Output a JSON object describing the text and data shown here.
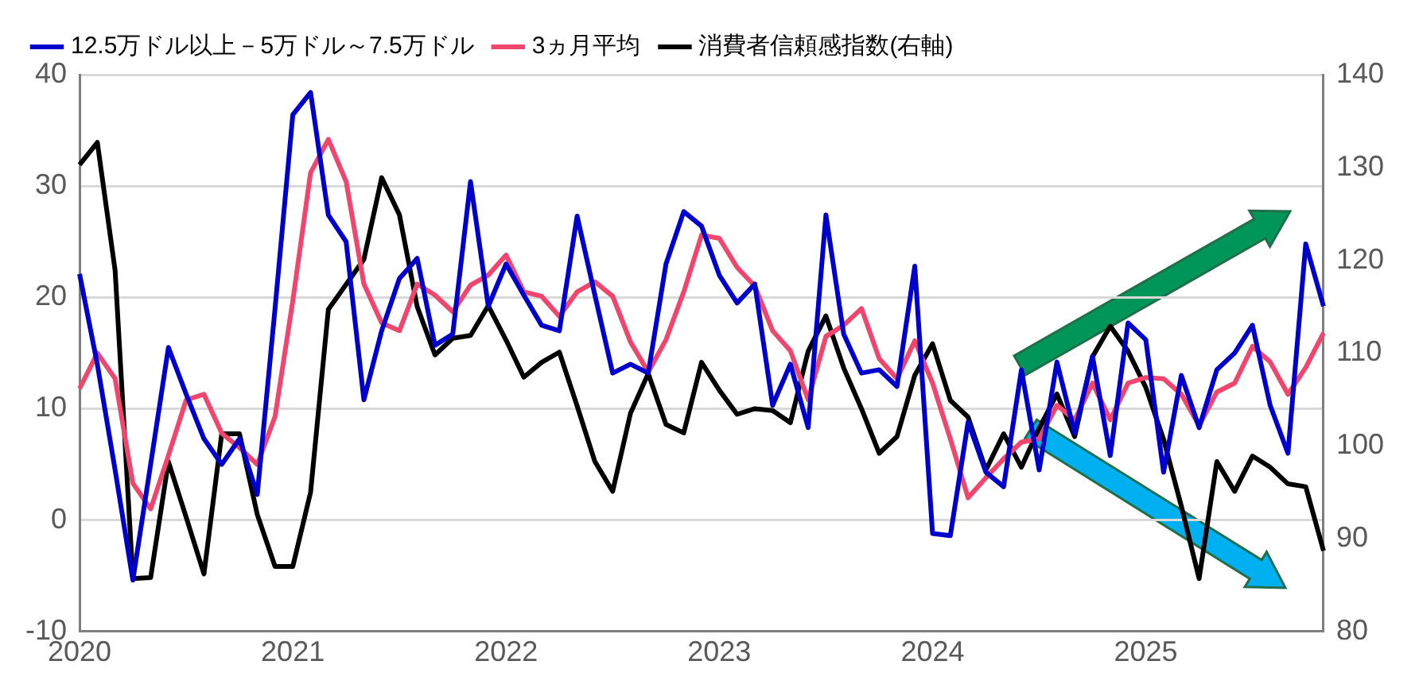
{
  "chart_data": {
    "type": "line",
    "categories": [
      "2020",
      null,
      null,
      null,
      null,
      null,
      null,
      null,
      null,
      null,
      null,
      null,
      "2021",
      null,
      null,
      null,
      null,
      null,
      null,
      null,
      null,
      null,
      null,
      null,
      "2022",
      null,
      null,
      null,
      null,
      null,
      null,
      null,
      null,
      null,
      null,
      null,
      "2023",
      null,
      null,
      null,
      null,
      null,
      null,
      null,
      null,
      null,
      null,
      null,
      "2024",
      null,
      null,
      null,
      null,
      null,
      null,
      null,
      null,
      null,
      null,
      null,
      "2025",
      null,
      null,
      null,
      null,
      null,
      null,
      null,
      null,
      null,
      null
    ],
    "series": [
      {
        "name": "12.5万ドル以上－5万ドル～7.5万ドル",
        "color": "#0000cc",
        "values": [
          22.1,
          14,
          4.5,
          -5.4,
          5,
          15.5,
          11.3,
          7.3,
          5.0,
          7.3,
          2.3,
          19,
          36.4,
          38.4,
          27.4,
          25,
          10.8,
          17,
          21.7,
          23.5,
          15.7,
          16.7,
          30.4,
          19.2,
          23,
          20.2,
          17.5,
          17,
          27.3,
          20.2,
          13.2,
          14,
          13.2,
          23,
          27.7,
          26.4,
          22,
          19.5,
          21.2,
          10.3,
          14,
          8.3,
          27.4,
          16.7,
          13.2,
          13.5,
          12,
          22.8,
          -1.2,
          -1.4,
          8.8,
          4.3,
          3.0,
          13.5,
          4.5,
          14.2,
          7.8,
          14.7,
          5.8,
          17.7,
          16.2,
          4.3,
          13,
          8.3,
          13.5,
          15,
          17.5,
          10.3,
          6,
          24.8,
          19.2
        ]
      },
      {
        "name": "3ヵ月平均",
        "color": "#f0466e",
        "values": [
          11.8,
          15,
          12.7,
          3.3,
          1.0,
          5.8,
          10.8,
          11.3,
          7.8,
          6.5,
          5.0,
          9.3,
          19.7,
          31.2,
          34.2,
          30.4,
          21.2,
          17.7,
          17,
          21.2,
          20.2,
          18.7,
          21.1,
          22,
          23.8,
          20.5,
          20.1,
          18.3,
          20.5,
          21.4,
          20.1,
          16,
          13.3,
          16.2,
          20.5,
          25.6,
          25.3,
          22.7,
          21,
          17,
          15.2,
          10.8,
          16.5,
          17.5,
          19,
          14.5,
          12.7,
          16.1,
          12.3,
          7.3,
          2.0,
          3.8,
          5.5,
          7.0,
          7.3,
          10.3,
          9,
          12.3,
          9.0,
          12.3,
          12.8,
          12.7,
          11.3,
          8.5,
          11.5,
          12.3,
          15.6,
          14.2,
          11.3,
          13.7,
          16.8
        ]
      },
      {
        "name": "消費者信頼感指数(右軸)",
        "color": "#000000",
        "axis": "y2",
        "values": [
          130.3,
          132.7,
          118.9,
          85.7,
          85.8,
          98.3,
          92.3,
          86.2,
          101.3,
          101.3,
          92.6,
          87,
          87,
          95,
          114.7,
          117.4,
          120.1,
          128.9,
          124.9,
          115,
          109.8,
          111.6,
          111.9,
          115.1,
          111.4,
          107.4,
          109,
          110.1,
          104.3,
          98.3,
          95.1,
          103.5,
          107.8,
          102.3,
          101.4,
          109,
          106,
          103.4,
          104,
          103.8,
          102.5,
          110.2,
          114,
          108.4,
          104,
          99.2,
          101,
          107.6,
          111,
          104.9,
          103.1,
          97.4,
          101.3,
          97.7,
          101.9,
          105.6,
          101,
          109.6,
          112.9,
          110.2,
          106.3,
          100.7,
          93.5,
          85.7,
          98.3,
          95.1,
          98.9,
          97.7,
          95.9,
          95.6,
          88.7
        ]
      }
    ],
    "ylim": [
      -10,
      40
    ],
    "yticks": [
      -10,
      0,
      10,
      20,
      30,
      40
    ],
    "y2lim": [
      80,
      140
    ],
    "y2ticks": [
      80,
      90,
      100,
      110,
      120,
      130,
      140
    ],
    "grid": "y",
    "legend": "top",
    "marker": "none",
    "line_style": "solid"
  }
}
